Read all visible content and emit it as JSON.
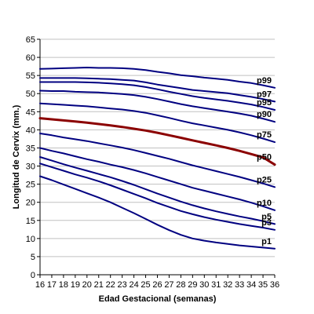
{
  "chart_data": {
    "type": "line",
    "xlabel": "Edad Gestacional (semanas)",
    "ylabel": "Longitud de Cervix (mm.)",
    "xlim": [
      16,
      36
    ],
    "ylim": [
      0,
      65
    ],
    "x_ticks": [
      16,
      17,
      18,
      19,
      20,
      21,
      22,
      23,
      24,
      25,
      26,
      27,
      28,
      29,
      30,
      31,
      32,
      33,
      34,
      35,
      36
    ],
    "y_ticks": [
      0,
      5,
      10,
      15,
      20,
      25,
      30,
      35,
      40,
      45,
      50,
      55,
      60,
      65
    ],
    "grid": "horizontal",
    "x": [
      16,
      17,
      18,
      19,
      20,
      21,
      22,
      23,
      24,
      25,
      26,
      27,
      28,
      29,
      30,
      31,
      32,
      33,
      34,
      35,
      36
    ],
    "series": [
      {
        "name": "p99",
        "color": "#000080",
        "values": [
          56.8,
          56.9,
          57.0,
          57.1,
          57.2,
          57.1,
          57.1,
          57.0,
          56.8,
          56.5,
          56.0,
          55.6,
          55.1,
          54.8,
          54.4,
          54.1,
          53.8,
          53.3,
          52.9,
          52.3,
          51.6
        ]
      },
      {
        "name": "p97",
        "color": "#000080",
        "values": [
          54.3,
          54.3,
          54.3,
          54.3,
          54.2,
          54.1,
          54.0,
          53.8,
          53.6,
          53.1,
          52.5,
          52.0,
          51.5,
          51.0,
          50.7,
          50.4,
          50.1,
          49.6,
          49.1,
          48.5,
          47.8
        ]
      },
      {
        "name": "p95",
        "color": "#000080",
        "values": [
          53.2,
          53.2,
          53.2,
          53.2,
          53.1,
          53.0,
          52.8,
          52.6,
          52.3,
          51.8,
          51.2,
          50.5,
          49.9,
          49.3,
          48.8,
          48.4,
          48.0,
          47.5,
          47.0,
          46.3,
          45.5
        ]
      },
      {
        "name": "p90",
        "color": "#000080",
        "values": [
          50.8,
          50.7,
          50.7,
          50.5,
          50.4,
          50.3,
          50.1,
          49.9,
          49.6,
          49.1,
          48.5,
          47.8,
          47.1,
          46.5,
          46.0,
          45.5,
          45.0,
          44.5,
          43.9,
          43.1,
          42.2
        ]
      },
      {
        "name": "p75",
        "color": "#000080",
        "values": [
          47.3,
          47.1,
          46.9,
          46.7,
          46.5,
          46.2,
          45.9,
          45.6,
          45.2,
          44.7,
          44.0,
          43.3,
          42.5,
          41.8,
          41.2,
          40.6,
          40.0,
          39.3,
          38.5,
          37.6,
          36.6
        ]
      },
      {
        "name": "p50",
        "color": "#8b0000",
        "values": [
          43.2,
          42.9,
          42.6,
          42.3,
          42.0,
          41.6,
          41.2,
          40.8,
          40.3,
          39.8,
          39.2,
          38.5,
          37.8,
          37.1,
          36.4,
          35.7,
          35.0,
          34.2,
          33.3,
          32.4,
          30.4
        ]
      },
      {
        "name": "p25",
        "color": "#000080",
        "values": [
          39.0,
          38.5,
          37.9,
          37.4,
          36.9,
          36.3,
          35.7,
          35.1,
          34.4,
          33.6,
          32.8,
          32.0,
          31.1,
          30.2,
          29.4,
          28.6,
          27.8,
          27.0,
          26.1,
          25.2,
          24.2
        ]
      },
      {
        "name": "p10",
        "color": "#000080",
        "values": [
          35.0,
          34.2,
          33.5,
          32.7,
          31.9,
          31.2,
          30.4,
          29.7,
          28.9,
          28.0,
          27.0,
          26.0,
          25.0,
          24.0,
          23.2,
          22.4,
          21.6,
          20.8,
          19.9,
          18.9,
          17.8
        ]
      },
      {
        "name": "p5",
        "color": "#000080",
        "values": [
          32.5,
          31.5,
          30.5,
          29.6,
          28.7,
          27.8,
          26.9,
          25.9,
          24.8,
          23.6,
          22.4,
          21.3,
          20.2,
          19.2,
          18.3,
          17.5,
          16.8,
          16.1,
          15.5,
          14.8,
          14.0
        ]
      },
      {
        "name": "p3",
        "color": "#000080",
        "values": [
          30.7,
          29.7,
          28.7,
          27.7,
          26.8,
          25.8,
          24.7,
          23.5,
          22.3,
          21.1,
          19.8,
          18.7,
          17.6,
          16.7,
          15.9,
          15.2,
          14.6,
          14.0,
          13.5,
          13.0,
          12.4
        ]
      },
      {
        "name": "p1",
        "color": "#000080",
        "values": [
          27.2,
          26.1,
          24.9,
          23.7,
          22.5,
          21.3,
          20.0,
          18.5,
          17.0,
          15.4,
          13.8,
          12.3,
          11.0,
          10.0,
          9.4,
          8.9,
          8.5,
          8.1,
          7.8,
          7.5,
          7.2
        ]
      }
    ]
  }
}
